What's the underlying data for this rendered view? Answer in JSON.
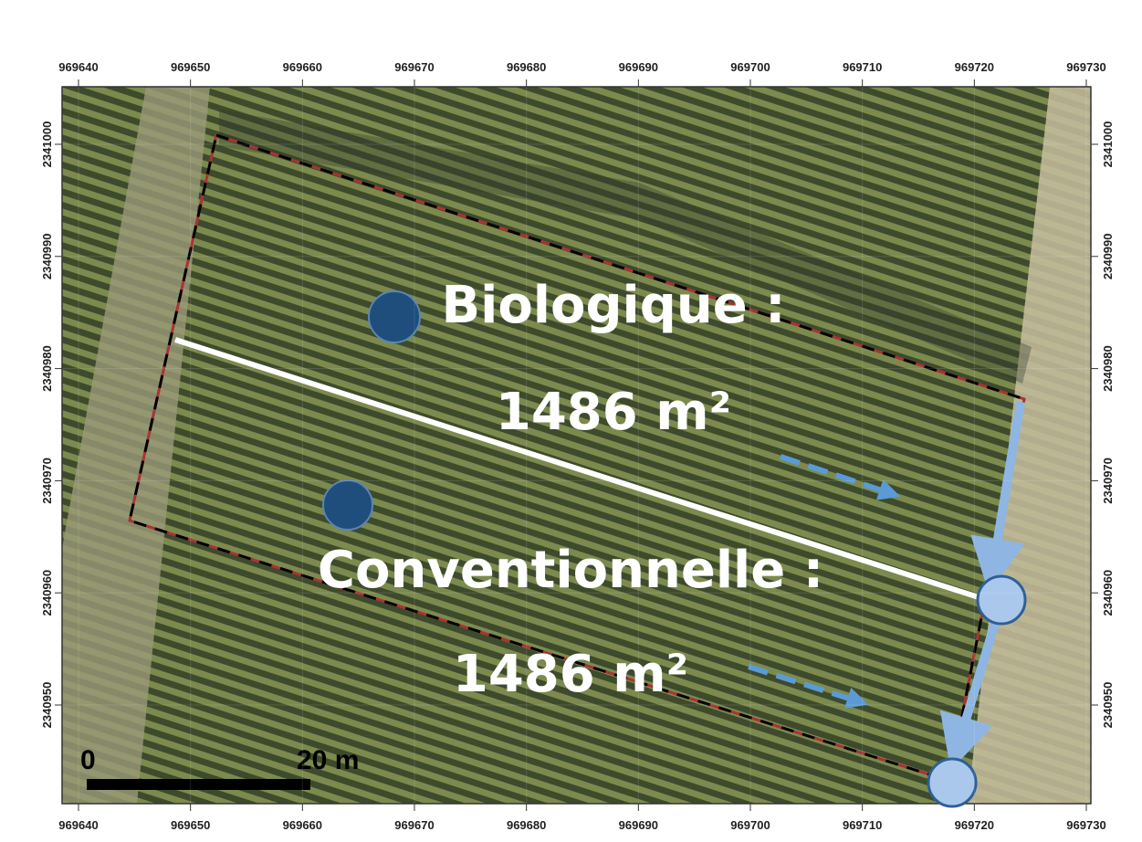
{
  "axes": {
    "x_ticks": [
      969640,
      969650,
      969660,
      969670,
      969680,
      969690,
      969700,
      969710,
      969720,
      969730
    ],
    "y_ticks": [
      2341000,
      2340990,
      2340980,
      2340970,
      2340960,
      2340950
    ]
  },
  "labels": {
    "bio_title": "Biologique :",
    "bio_area": "1486 m²",
    "conv_title": "Conventionnelle :",
    "conv_area": "1486 m²"
  },
  "scale_bar": {
    "start": "0",
    "end": "20 m"
  }
}
